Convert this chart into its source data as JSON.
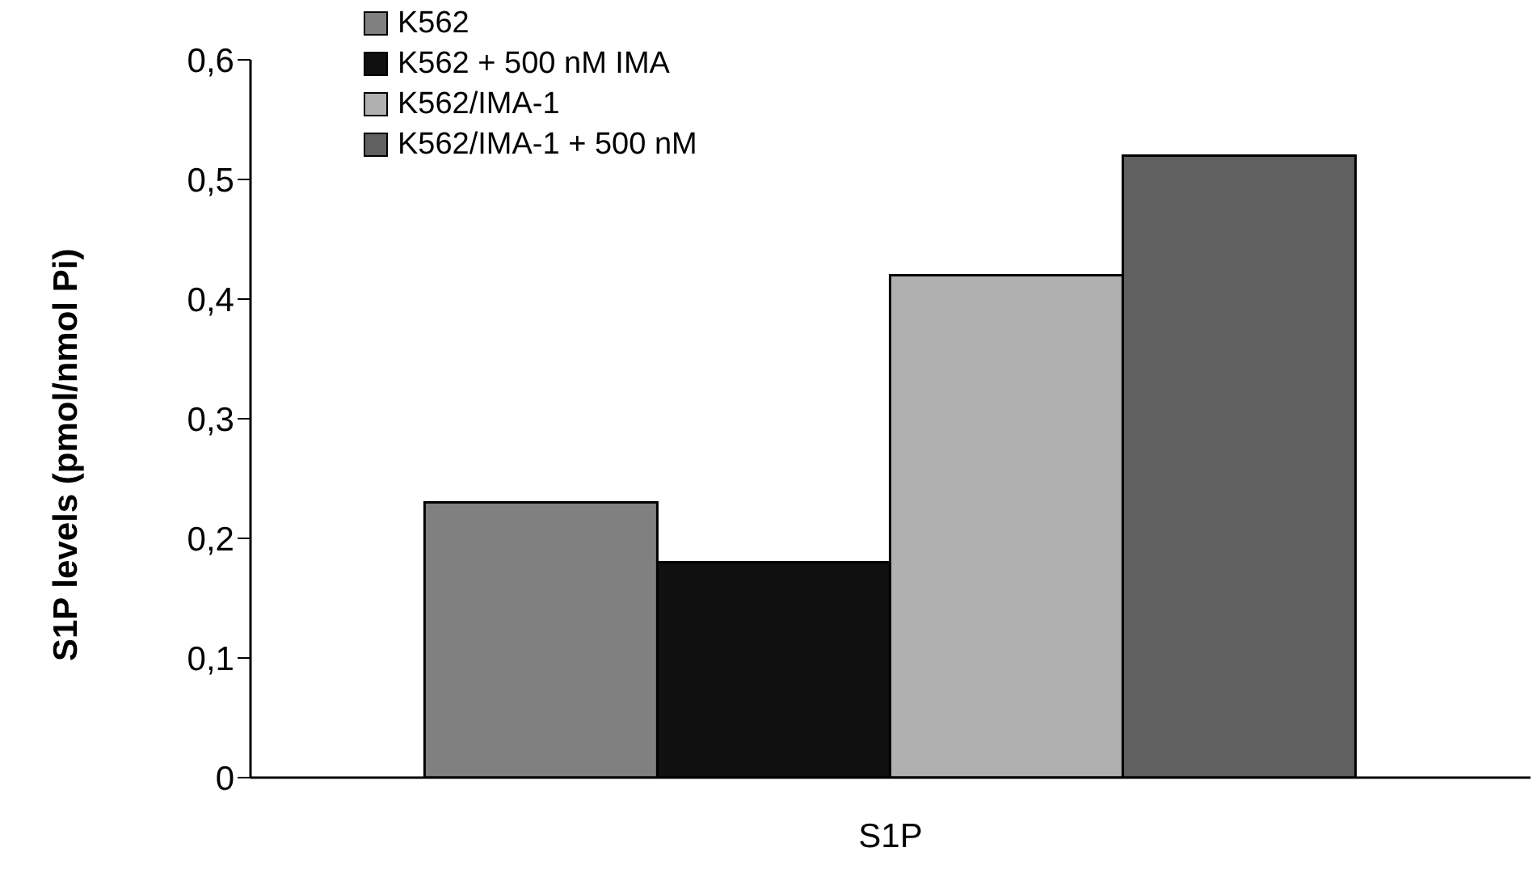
{
  "chart_data": {
    "type": "bar",
    "categories": [
      "S1P"
    ],
    "ylabel": "S1P levels (pmol/nmol Pi)",
    "series": [
      {
        "name": "K562",
        "color": "#808080",
        "values": [
          0.23
        ]
      },
      {
        "name": "K562 + 500 nM IMA",
        "color": "#101010",
        "values": [
          0.18
        ]
      },
      {
        "name": "K562/IMA-1",
        "color": "#b0b0b0",
        "values": [
          0.42
        ]
      },
      {
        "name": "K562/IMA-1 + 500 nM",
        "color": "#606060",
        "values": [
          0.52
        ]
      }
    ],
    "ylim": [
      0,
      0.6
    ],
    "yticks": [
      0,
      {
        "value": 0.1,
        "label": "0,1"
      },
      {
        "value": 0.2,
        "label": "0,2"
      },
      {
        "value": 0.3,
        "label": "0,3"
      },
      {
        "value": 0.4,
        "label": "0,4"
      },
      {
        "value": 0.5,
        "label": "0,5"
      },
      {
        "value": 0.6,
        "label": "0,6"
      }
    ],
    "grid": false,
    "legend": "top left"
  }
}
